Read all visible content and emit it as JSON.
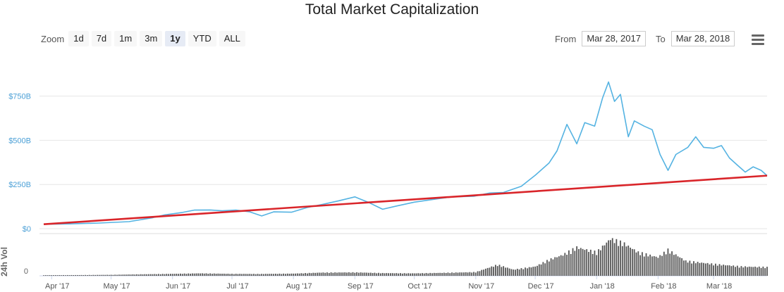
{
  "title": "Total Market Capitalization",
  "toolbar": {
    "zoom_label": "Zoom",
    "buttons": [
      "1d",
      "7d",
      "1m",
      "3m",
      "1y",
      "YTD",
      "ALL"
    ],
    "active": "1y",
    "from_label": "From",
    "from_value": "Mar 28, 2017",
    "to_label": "To",
    "to_value": "Mar 28, 2018"
  },
  "colors": {
    "market_cap": "#55b3e2",
    "trend": "#d9252a",
    "volume": "#555555",
    "grid": "#e6e6e6",
    "axis_label": "#4a9fd6"
  },
  "chart_data": {
    "type": "line",
    "title": "Total Market Capitalization",
    "xlim": [
      "2017-03-28",
      "2018-03-28"
    ],
    "ylim": [
      0,
      1000
    ],
    "y_unit": "B",
    "y_ticks": [
      "$0",
      "$250B",
      "$500B",
      "$750B"
    ],
    "x_ticks": [
      "Apr '17",
      "May '17",
      "Jun '17",
      "Jul '17",
      "Aug '17",
      "Sep '17",
      "Oct '17",
      "Nov '17",
      "Dec '17",
      "Jan '18",
      "Feb '18",
      "Mar '18"
    ],
    "grid": true,
    "series": [
      {
        "values": [
          [
            "2017-03-28",
            25
          ],
          [
            "2017-04-10",
            27
          ],
          [
            "2017-04-25",
            32
          ],
          [
            "2017-05-10",
            40
          ],
          [
            "2017-05-22",
            62
          ],
          [
            "2017-05-28",
            78
          ],
          [
            "2017-06-06",
            92
          ],
          [
            "2017-06-12",
            105
          ],
          [
            "2017-06-20",
            106
          ],
          [
            "2017-06-26",
            101
          ],
          [
            "2017-07-03",
            105
          ],
          [
            "2017-07-10",
            95
          ],
          [
            "2017-07-16",
            72
          ],
          [
            "2017-07-22",
            95
          ],
          [
            "2017-07-31",
            93
          ],
          [
            "2017-08-08",
            120
          ],
          [
            "2017-08-16",
            138
          ],
          [
            "2017-08-24",
            158
          ],
          [
            "2017-09-01",
            180
          ],
          [
            "2017-09-08",
            148
          ],
          [
            "2017-09-15",
            110
          ],
          [
            "2017-09-22",
            128
          ],
          [
            "2017-10-01",
            150
          ],
          [
            "2017-10-12",
            168
          ],
          [
            "2017-10-20",
            180
          ],
          [
            "2017-10-31",
            183
          ],
          [
            "2017-11-08",
            202
          ],
          [
            "2017-11-15",
            205
          ],
          [
            "2017-11-24",
            240
          ],
          [
            "2017-12-01",
            302
          ],
          [
            "2017-12-08",
            372
          ],
          [
            "2017-12-12",
            440
          ],
          [
            "2017-12-17",
            590
          ],
          [
            "2017-12-22",
            480
          ],
          [
            "2017-12-26",
            600
          ],
          [
            "2017-12-31",
            580
          ],
          [
            "2018-01-04",
            740
          ],
          [
            "2018-01-07",
            830
          ],
          [
            "2018-01-10",
            720
          ],
          [
            "2018-01-13",
            760
          ],
          [
            "2018-01-17",
            520
          ],
          [
            "2018-01-20",
            610
          ],
          [
            "2018-01-25",
            580
          ],
          [
            "2018-01-29",
            560
          ],
          [
            "2018-02-02",
            420
          ],
          [
            "2018-02-06",
            330
          ],
          [
            "2018-02-10",
            420
          ],
          [
            "2018-02-16",
            460
          ],
          [
            "2018-02-20",
            520
          ],
          [
            "2018-02-24",
            460
          ],
          [
            "2018-03-01",
            455
          ],
          [
            "2018-03-05",
            470
          ],
          [
            "2018-03-09",
            400
          ],
          [
            "2018-03-13",
            360
          ],
          [
            "2018-03-17",
            320
          ],
          [
            "2018-03-21",
            350
          ],
          [
            "2018-03-25",
            330
          ],
          [
            "2018-03-28",
            300
          ]
        ]
      }
    ],
    "trend_line": {
      "start": [
        "2017-03-28",
        25
      ],
      "end": [
        "2018-03-28",
        300
      ]
    },
    "volume_axis": {
      "label": "24h Vol",
      "ticks": [
        "0"
      ]
    },
    "volume": {
      "description_hidden": true,
      "values": [
        [
          "2017-03-28",
          0.5
        ],
        [
          "2017-04-15",
          0.6
        ],
        [
          "2017-05-01",
          0.8
        ],
        [
          "2017-05-15",
          1.2
        ],
        [
          "2017-06-01",
          1.6
        ],
        [
          "2017-06-15",
          2.0
        ],
        [
          "2017-07-01",
          1.6
        ],
        [
          "2017-07-15",
          1.5
        ],
        [
          "2017-08-01",
          1.8
        ],
        [
          "2017-08-15",
          2.6
        ],
        [
          "2017-09-01",
          2.8
        ],
        [
          "2017-09-15",
          2.2
        ],
        [
          "2017-10-01",
          2.0
        ],
        [
          "2017-10-15",
          2.4
        ],
        [
          "2017-11-01",
          3.0
        ],
        [
          "2017-11-12",
          9.0
        ],
        [
          "2017-11-20",
          5.0
        ],
        [
          "2017-12-01",
          7.5
        ],
        [
          "2017-12-08",
          13.0
        ],
        [
          "2017-12-15",
          17.0
        ],
        [
          "2017-12-22",
          23.0
        ],
        [
          "2018-01-01",
          19.0
        ],
        [
          "2018-01-08",
          30.0
        ],
        [
          "2018-01-15",
          26.0
        ],
        [
          "2018-01-22",
          19.0
        ],
        [
          "2018-02-01",
          15.0
        ],
        [
          "2018-02-06",
          21.0
        ],
        [
          "2018-02-15",
          12.0
        ],
        [
          "2018-03-01",
          9.5
        ],
        [
          "2018-03-15",
          7.5
        ],
        [
          "2018-03-28",
          7.0
        ]
      ]
    }
  }
}
